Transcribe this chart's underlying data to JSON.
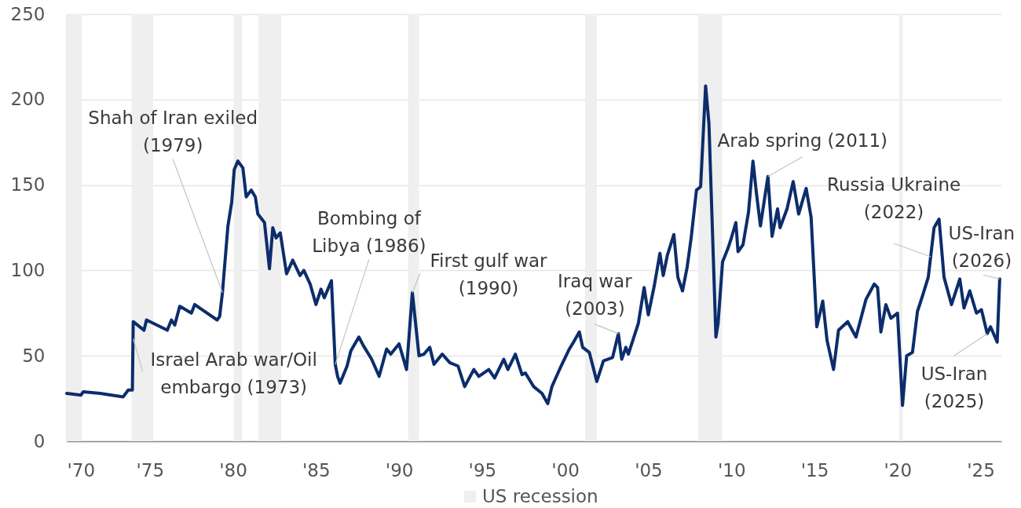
{
  "chart_data": {
    "type": "line",
    "x": [
      1970.0,
      1970.85,
      1971.0,
      1972.0,
      1973.4,
      1973.7,
      1973.95,
      1974.0,
      1974.65,
      1974.8,
      1976.05,
      1976.3,
      1976.5,
      1976.8,
      1977.5,
      1977.7,
      1979.05,
      1979.2,
      1979.37,
      1979.7,
      1979.93,
      1980.08,
      1980.3,
      1980.6,
      1980.8,
      1981.1,
      1981.35,
      1981.5,
      1981.9,
      1982.2,
      1982.4,
      1982.6,
      1982.85,
      1983.23,
      1983.6,
      1984.04,
      1984.27,
      1984.65,
      1985.0,
      1985.3,
      1985.5,
      1985.93,
      1986.16,
      1986.3,
      1986.45,
      1986.87,
      1987.1,
      1987.58,
      1987.85,
      1988.35,
      1988.8,
      1989.25,
      1989.5,
      1990.0,
      1990.45,
      1990.8,
      1991.2,
      1991.5,
      1991.85,
      1992.1,
      1992.6,
      1993.05,
      1993.55,
      1993.95,
      1994.5,
      1994.8,
      1995.4,
      1995.75,
      1996.3,
      1996.55,
      1997.0,
      1997.4,
      1997.6,
      1998.1,
      1998.6,
      1998.95,
      1999.2,
      1999.75,
      2000.25,
      2000.5,
      2000.85,
      2001.05,
      2001.45,
      2001.9,
      2002.3,
      2002.85,
      2003.2,
      2003.4,
      2003.65,
      2003.8,
      2004.4,
      2004.75,
      2005.0,
      2005.36,
      2005.7,
      2005.9,
      2006.15,
      2006.54,
      2006.78,
      2007.06,
      2007.34,
      2007.58,
      2007.9,
      2008.15,
      2008.45,
      2008.65,
      2009.07,
      2009.2,
      2009.47,
      2009.8,
      2010.0,
      2010.27,
      2010.4,
      2010.7,
      2011.03,
      2011.3,
      2011.5,
      2011.75,
      2012.2,
      2012.45,
      2012.78,
      2012.93,
      2013.35,
      2013.72,
      2014.05,
      2014.5,
      2014.8,
      2015.14,
      2015.5,
      2015.76,
      2016.15,
      2016.45,
      2017.0,
      2017.5,
      2018.1,
      2018.6,
      2018.8,
      2019.0,
      2019.3,
      2019.6,
      2020.0,
      2020.3,
      2020.55,
      2020.9,
      2021.2,
      2021.5,
      2021.85,
      2022.2,
      2022.5,
      2022.8,
      2023.25,
      2023.75,
      2024.0,
      2024.35,
      2024.75,
      2025.05,
      2025.4,
      2025.6,
      2026.0,
      2026.15
    ],
    "series": [
      {
        "color": "#0c2d6b",
        "values": [
          28,
          27,
          29,
          28,
          26,
          30,
          30,
          70,
          65,
          71,
          65,
          71,
          68,
          79,
          75,
          80,
          71,
          73,
          87,
          126,
          140,
          159,
          164,
          160,
          143,
          147,
          143,
          133,
          128,
          101,
          125,
          119,
          122,
          98,
          106,
          97,
          100,
          92,
          80,
          89,
          84,
          94,
          45,
          38,
          34,
          44,
          53,
          61,
          56,
          48,
          38,
          54,
          51,
          57,
          42,
          87,
          50,
          51,
          55,
          45,
          51,
          46,
          44,
          32,
          42,
          38,
          42,
          37,
          48,
          42,
          51,
          39,
          40,
          32,
          28,
          22,
          32,
          44,
          54,
          58,
          64,
          55,
          52,
          35,
          47,
          49,
          63,
          48,
          55,
          51,
          69,
          90,
          74,
          91,
          110,
          97,
          109,
          121,
          96,
          88,
          102,
          119,
          147,
          149,
          208,
          186,
          61,
          69,
          105,
          113,
          119,
          128,
          111,
          115,
          134,
          164,
          146,
          126,
          155,
          120,
          136,
          125,
          136,
          152,
          133,
          148,
          131,
          67,
          82,
          59,
          42,
          65,
          70,
          61,
          83,
          92,
          90,
          64,
          80,
          72,
          75,
          21,
          50,
          52,
          76,
          85,
          96,
          125,
          130,
          96,
          80,
          95,
          78,
          88,
          75,
          77,
          63,
          67,
          58,
          95
        ]
      }
    ],
    "xlim": [
      1970,
      2026.25
    ],
    "xticks": [
      {
        "value": 1970,
        "label": "'70"
      },
      {
        "value": 1975,
        "label": "'75"
      },
      {
        "value": 1980,
        "label": "'80"
      },
      {
        "value": 1985,
        "label": "'85"
      },
      {
        "value": 1990,
        "label": "'90"
      },
      {
        "value": 1995,
        "label": "'95"
      },
      {
        "value": 2000,
        "label": "'00"
      },
      {
        "value": 2005,
        "label": "'05"
      },
      {
        "value": 2010,
        "label": "'10"
      },
      {
        "value": 2015,
        "label": "'15"
      },
      {
        "value": 2020,
        "label": "'20"
      },
      {
        "value": 2025,
        "label": "'25"
      }
    ],
    "ylim": [
      0,
      250
    ],
    "yticks": [
      0,
      50,
      100,
      150,
      200,
      250
    ],
    "grid": "y",
    "legend": "bottom",
    "line_style": "solid",
    "bands": [
      {
        "axis": "x",
        "from": 1970.0,
        "to": 1970.9,
        "label": "US recession",
        "color": "#efefef"
      },
      {
        "axis": "x",
        "from": 1973.9,
        "to": 1975.2,
        "color": "#efefef"
      },
      {
        "axis": "x",
        "from": 1980.05,
        "to": 1980.55,
        "color": "#efefef"
      },
      {
        "axis": "x",
        "from": 1981.55,
        "to": 1982.9,
        "color": "#efefef"
      },
      {
        "axis": "x",
        "from": 1990.55,
        "to": 1991.2,
        "color": "#efefef"
      },
      {
        "axis": "x",
        "from": 2001.2,
        "to": 2001.9,
        "color": "#efefef"
      },
      {
        "axis": "x",
        "from": 2008.0,
        "to": 2009.45,
        "color": "#efefef"
      },
      {
        "axis": "x",
        "from": 2020.1,
        "to": 2020.3,
        "color": "#efefef"
      }
    ],
    "annotations": [
      {
        "text": "Shah of Iran exiled\n(1979)",
        "x": 1979.37,
        "y": 87
      },
      {
        "text": "Israel Arab war/Oil\nembargo (1973)",
        "x": 1974.0,
        "y": 60
      },
      {
        "text": "Bombing of\nLibya (1986)",
        "x": 1986.16,
        "y": 45
      },
      {
        "text": "First gulf war\n(1990)",
        "x": 1990.8,
        "y": 87
      },
      {
        "text": "Iraq war\n(2003)",
        "x": 2003.2,
        "y": 63
      },
      {
        "text": "Arab spring (2011)",
        "x": 2012.2,
        "y": 155
      },
      {
        "text": "Russia Ukraine\n(2022)",
        "x": 2022.0,
        "y": 108
      },
      {
        "text": "US-Iran\n(2026)",
        "x": 2026.15,
        "y": 95
      },
      {
        "text": "US-Iran\n(2025)",
        "x": 2025.4,
        "y": 63
      }
    ]
  }
}
